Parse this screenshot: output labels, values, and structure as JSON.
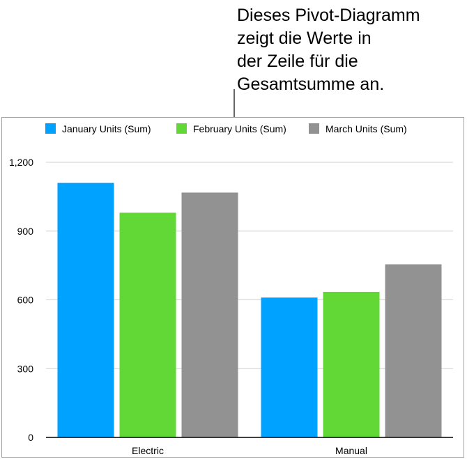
{
  "callout": "Dieses Pivot-Diagramm\nzeigt die Werte in\nder Zeile für die\nGesamtsumme an.",
  "chart_data": {
    "type": "bar",
    "categories": [
      "Electric",
      "Manual"
    ],
    "series": [
      {
        "name": "January Units (Sum)",
        "values": [
          1110,
          610
        ],
        "color": "#00a2ff"
      },
      {
        "name": "February Units (Sum)",
        "values": [
          980,
          635
        ],
        "color": "#61d836"
      },
      {
        "name": "March Units (Sum)",
        "values": [
          1068,
          755
        ],
        "color": "#929292"
      }
    ],
    "ylim": [
      0,
      1200
    ],
    "yticks": [
      0,
      300,
      600,
      900,
      1200
    ],
    "ytick_labels": [
      "0",
      "300",
      "600",
      "900",
      "1,200"
    ],
    "grid": true,
    "legend": "top"
  }
}
